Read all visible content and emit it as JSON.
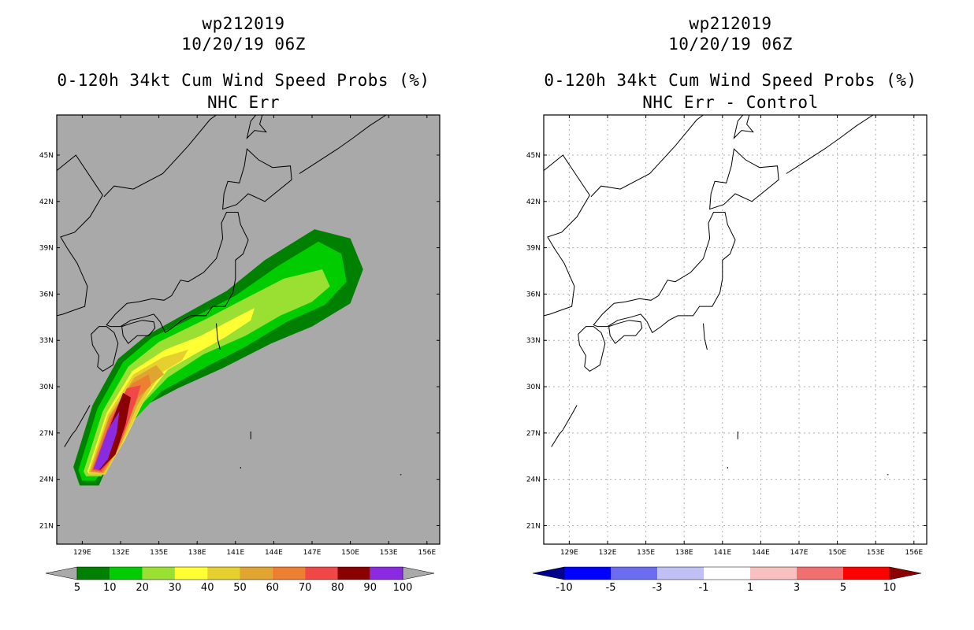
{
  "left_panel": {
    "storm_id": "wp212019",
    "datetime": "10/20/19 06Z",
    "product": "0-120h 34kt Cum Wind Speed Probs (%)",
    "subtitle": "NHC Err",
    "background_color": "#a9a9a9",
    "colorbar": {
      "boundaries": [
        "5",
        "10",
        "20",
        "30",
        "40",
        "50",
        "60",
        "70",
        "80",
        "90",
        "100"
      ],
      "colors": [
        "#008000",
        "#00cc00",
        "#99e033",
        "#ffff33",
        "#e5d030",
        "#e0a530",
        "#ed8030",
        "#f04848",
        "#8b0000",
        "#8a2be2"
      ],
      "under_color": "#a9a9a9",
      "over_color": "#a9a9a9"
    }
  },
  "right_panel": {
    "storm_id": "wp212019",
    "datetime": "10/20/19 06Z",
    "product": "0-120h 34kt Cum Wind Speed Probs (%)",
    "subtitle": "NHC Err - Control",
    "background_color": "#ffffff",
    "colorbar": {
      "boundaries": [
        "-10",
        "-5",
        "-3",
        "-1",
        "1",
        "3",
        "5",
        "10"
      ],
      "colors": [
        "#0000ff",
        "#6c6cf0",
        "#c0c0f4",
        "#ffffff",
        "#f8c0c0",
        "#f07070",
        "#ff0000"
      ],
      "under_color": "#00008b",
      "over_color": "#8b0000"
    }
  },
  "axes": {
    "lat_labels": [
      "45N",
      "42N",
      "39N",
      "36N",
      "33N",
      "30N",
      "27N",
      "24N",
      "21N"
    ],
    "lat_values": [
      45,
      42,
      39,
      36,
      33,
      30,
      27,
      24,
      21
    ],
    "lon_labels": [
      "129E",
      "132E",
      "135E",
      "138E",
      "141E",
      "144E",
      "147E",
      "150E",
      "153E",
      "156E"
    ],
    "lon_values": [
      129,
      132,
      135,
      138,
      141,
      144,
      147,
      150,
      153,
      156
    ],
    "lon_range": [
      127.0,
      157.0
    ],
    "lat_range": [
      19.8,
      47.6
    ]
  },
  "probability_swath": {
    "units": "percent",
    "contours": [
      {
        "level": 5,
        "polygon": [
          [
            128.3,
            24.8
          ],
          [
            129.8,
            28.8
          ],
          [
            131.8,
            31.8
          ],
          [
            134,
            33.3
          ],
          [
            136.8,
            34.6
          ],
          [
            140.3,
            36.2
          ],
          [
            143.3,
            38.2
          ],
          [
            147.2,
            40.2
          ],
          [
            150,
            39.6
          ],
          [
            151,
            37.6
          ],
          [
            150,
            35.4
          ],
          [
            147,
            33.9
          ],
          [
            143.8,
            32.8
          ],
          [
            140,
            31.2
          ],
          [
            136.5,
            29.9
          ],
          [
            133.5,
            28.6
          ],
          [
            131.7,
            26.2
          ],
          [
            130.3,
            23.6
          ],
          [
            128.8,
            23.6
          ]
        ]
      },
      {
        "level": 10,
        "polygon": [
          [
            128.7,
            24.6
          ],
          [
            130.2,
            28.6
          ],
          [
            132.2,
            31.6
          ],
          [
            134.5,
            33.2
          ],
          [
            137.5,
            34.4
          ],
          [
            141,
            35.9
          ],
          [
            144.3,
            37.8
          ],
          [
            147.5,
            39.4
          ],
          [
            149.3,
            38.6
          ],
          [
            149.7,
            36.8
          ],
          [
            148,
            35.3
          ],
          [
            145,
            34.2
          ],
          [
            141.8,
            32.6
          ],
          [
            138.5,
            31.2
          ],
          [
            135.2,
            29.7
          ],
          [
            133,
            27.8
          ],
          [
            131.3,
            25.3
          ],
          [
            130,
            23.9
          ],
          [
            129,
            23.9
          ]
        ]
      },
      {
        "level": 20,
        "polygon": [
          [
            129.1,
            24.5
          ],
          [
            130.6,
            28.4
          ],
          [
            132.6,
            31.3
          ],
          [
            135,
            32.9
          ],
          [
            138.5,
            34.3
          ],
          [
            141.5,
            35.6
          ],
          [
            144.8,
            37
          ],
          [
            147.8,
            37.6
          ],
          [
            148.4,
            36.5
          ],
          [
            147,
            35.5
          ],
          [
            144.5,
            34.6
          ],
          [
            141.8,
            33.3
          ],
          [
            138.5,
            32.1
          ],
          [
            135.7,
            30.6
          ],
          [
            133.6,
            28.8
          ],
          [
            131.9,
            26.2
          ],
          [
            130.5,
            24.2
          ],
          [
            129.3,
            24.2
          ]
        ]
      },
      {
        "level": 30,
        "polygon": [
          [
            129.4,
            24.5
          ],
          [
            130.9,
            28.3
          ],
          [
            132.9,
            31
          ],
          [
            135.5,
            32.4
          ],
          [
            138.3,
            33.3
          ],
          [
            141.3,
            34.6
          ],
          [
            142.5,
            35.1
          ],
          [
            142.2,
            34.3
          ],
          [
            140.2,
            33.2
          ],
          [
            137.8,
            32.1
          ],
          [
            135.7,
            31.1
          ],
          [
            133.9,
            29.2
          ],
          [
            132.3,
            26.5
          ],
          [
            130.8,
            24.4
          ],
          [
            129.6,
            24.3
          ]
        ]
      },
      {
        "level": 40,
        "polygon": [
          [
            129.5,
            24.5
          ],
          [
            131,
            28.2
          ],
          [
            133,
            30.8
          ],
          [
            135.3,
            31.9
          ],
          [
            137.3,
            32.4
          ],
          [
            136.8,
            31.7
          ],
          [
            135.2,
            30.9
          ],
          [
            133.8,
            29.1
          ],
          [
            132.2,
            26.4
          ],
          [
            130.8,
            24.3
          ],
          [
            129.6,
            24.3
          ]
        ]
      },
      {
        "level": 50,
        "polygon": [
          [
            129.6,
            24.5
          ],
          [
            131.1,
            28.1
          ],
          [
            133.1,
            30.6
          ],
          [
            134.8,
            31.4
          ],
          [
            135.4,
            30.8
          ],
          [
            134.2,
            30
          ],
          [
            133.3,
            28.8
          ],
          [
            132,
            26.2
          ],
          [
            130.7,
            24.4
          ]
        ]
      },
      {
        "level": 60,
        "polygon": [
          [
            129.7,
            24.5
          ],
          [
            131.1,
            28
          ],
          [
            132.9,
            30.2
          ],
          [
            134.2,
            30.8
          ],
          [
            134.4,
            30.1
          ],
          [
            133.4,
            29.3
          ],
          [
            132.7,
            28.1
          ],
          [
            131.8,
            26
          ],
          [
            130.6,
            24.4
          ]
        ]
      },
      {
        "level": 70,
        "polygon": [
          [
            129.8,
            24.6
          ],
          [
            131.2,
            27.8
          ],
          [
            132.5,
            29.9
          ],
          [
            133.6,
            30.1
          ],
          [
            133.3,
            29.3
          ],
          [
            132.6,
            27.7
          ],
          [
            131.7,
            25.8
          ],
          [
            130.5,
            24.5
          ]
        ]
      },
      {
        "level": 80,
        "polygon": [
          [
            129.9,
            24.7
          ],
          [
            131.2,
            27.5
          ],
          [
            132.2,
            29.6
          ],
          [
            132.8,
            29.3
          ],
          [
            132.4,
            27.6
          ],
          [
            131.6,
            25.6
          ],
          [
            130.4,
            24.6
          ]
        ]
      },
      {
        "level": 90,
        "polygon": [
          [
            129.9,
            24.7
          ],
          [
            131,
            27.2
          ],
          [
            131.9,
            28.4
          ],
          [
            131.7,
            27
          ],
          [
            131,
            25.3
          ],
          [
            130.3,
            24.6
          ]
        ]
      }
    ]
  },
  "coastlines": {
    "kyushu": [
      [
        129.7,
        33.4
      ],
      [
        130.3,
        33.9
      ],
      [
        130.9,
        33.9
      ],
      [
        131.5,
        33.5
      ],
      [
        131.8,
        32.8
      ],
      [
        131.4,
        31.4
      ],
      [
        130.6,
        31
      ],
      [
        130.2,
        31.3
      ],
      [
        130.3,
        32
      ],
      [
        129.8,
        32.7
      ],
      [
        129.7,
        33.4
      ]
    ],
    "shikoku": [
      [
        132.1,
        33.9
      ],
      [
        132.8,
        34.1
      ],
      [
        133.7,
        34.3
      ],
      [
        134.6,
        34.2
      ],
      [
        134.7,
        33.8
      ],
      [
        134.2,
        33.3
      ],
      [
        133.3,
        33.3
      ],
      [
        132.6,
        32.8
      ],
      [
        132.2,
        33.3
      ],
      [
        132.1,
        33.9
      ]
    ],
    "honshu": [
      [
        130.9,
        34
      ],
      [
        131.6,
        34.7
      ],
      [
        132.5,
        35.4
      ],
      [
        133.4,
        35.5
      ],
      [
        134.5,
        35.7
      ],
      [
        135.4,
        35.6
      ],
      [
        136,
        35.9
      ],
      [
        136.7,
        36.9
      ],
      [
        137.3,
        36.8
      ],
      [
        138.5,
        37.4
      ],
      [
        139.5,
        38.3
      ],
      [
        140,
        39.6
      ],
      [
        139.9,
        40.6
      ],
      [
        140.3,
        41.3
      ],
      [
        141.2,
        41.3
      ],
      [
        141.4,
        40.5
      ],
      [
        142,
        39.5
      ],
      [
        141.6,
        38.6
      ],
      [
        141,
        38.2
      ],
      [
        141,
        37
      ],
      [
        140.8,
        36.1
      ],
      [
        140.2,
        35.2
      ],
      [
        139.8,
        35.2
      ],
      [
        139.2,
        35.2
      ],
      [
        138.7,
        34.6
      ],
      [
        137.5,
        34.6
      ],
      [
        136.8,
        34.3
      ],
      [
        136.2,
        33.9
      ],
      [
        135.5,
        33.5
      ],
      [
        135.1,
        34.2
      ],
      [
        134.6,
        34.7
      ],
      [
        133.8,
        34.5
      ],
      [
        132.8,
        34.3
      ],
      [
        132,
        33.9
      ],
      [
        131.2,
        33.9
      ],
      [
        130.9,
        34
      ]
    ],
    "hokkaido": [
      [
        140,
        41.5
      ],
      [
        140.1,
        42.5
      ],
      [
        140.4,
        43.3
      ],
      [
        141.3,
        43.2
      ],
      [
        141.7,
        44.3
      ],
      [
        141.9,
        45.4
      ],
      [
        142.8,
        44.7
      ],
      [
        143.9,
        44.2
      ],
      [
        145.3,
        44.3
      ],
      [
        145.4,
        43.4
      ],
      [
        143.3,
        42
      ],
      [
        142,
        42.5
      ],
      [
        141.1,
        41.8
      ],
      [
        140,
        41.5
      ]
    ],
    "sakhalin": [
      [
        141.9,
        46.1
      ],
      [
        142.2,
        47.2
      ],
      [
        142.6,
        47.6
      ],
      [
        143.1,
        47.6
      ],
      [
        142.9,
        47
      ],
      [
        143.4,
        46.5
      ],
      [
        142.5,
        46.6
      ],
      [
        141.9,
        46.1
      ]
    ],
    "mainland": [
      [
        127,
        44
      ],
      [
        128.5,
        45
      ],
      [
        130.6,
        42.4
      ],
      [
        129.6,
        41
      ],
      [
        128.4,
        40
      ],
      [
        127.3,
        39.7
      ],
      [
        127.8,
        39
      ],
      [
        128.6,
        38
      ],
      [
        129.4,
        36.5
      ],
      [
        129.2,
        35.2
      ],
      [
        128.5,
        35
      ],
      [
        127.5,
        34.7
      ],
      [
        127,
        34.6
      ]
    ],
    "mainland_north": [
      [
        130.7,
        42.3
      ],
      [
        131.5,
        43
      ],
      [
        133,
        42.8
      ],
      [
        135.3,
        43.8
      ],
      [
        137.3,
        45.6
      ],
      [
        139,
        47.3
      ],
      [
        139.5,
        47.6
      ]
    ],
    "kurils": [
      [
        146,
        43.8
      ],
      [
        147.5,
        44.6
      ],
      [
        149,
        45.4
      ],
      [
        150.2,
        46.1
      ],
      [
        151.5,
        46.9
      ],
      [
        152.8,
        47.6
      ]
    ],
    "ryukyu": [
      [
        127.6,
        26.1
      ],
      [
        128.2,
        26.9
      ],
      [
        128.5,
        27.2
      ],
      [
        129.2,
        28.2
      ],
      [
        129.6,
        28.8
      ]
    ],
    "izu": [
      [
        139.5,
        34.1
      ],
      [
        139.6,
        33.1
      ],
      [
        139.8,
        32.4
      ]
    ],
    "misc": [
      [
        [
          142.2,
          26.6
        ],
        [
          142.2,
          27.1
        ]
      ],
      [
        [
          141.4,
          24.8
        ],
        [
          141.4,
          24.7
        ]
      ],
      [
        [
          153.9,
          24.3
        ],
        [
          154,
          24.3
        ]
      ]
    ]
  }
}
